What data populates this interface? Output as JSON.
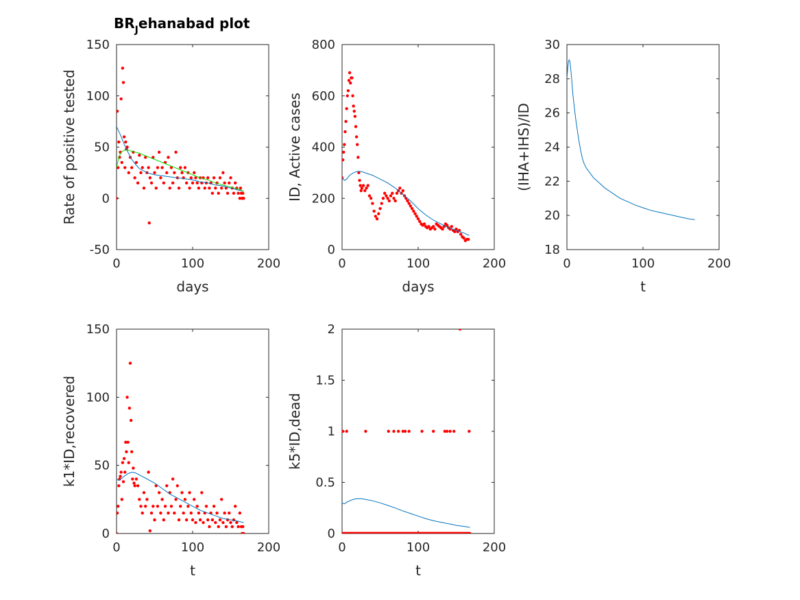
{
  "figure": {
    "title_main": "BR",
    "title_sub": "J",
    "title_rest": "ehanabad plot"
  },
  "colors": {
    "points": "#ff0000",
    "fit": "#0072bd",
    "fit2": "#00e000",
    "axes": "#262626"
  },
  "chart_data": [
    {
      "id": "p1",
      "type": "scatter",
      "xlabel": "days",
      "ylabel": "Rate of positive tested",
      "xlim": [
        0,
        200
      ],
      "ylim": [
        -50,
        150
      ],
      "xticks": [
        0,
        100,
        200
      ],
      "yticks": [
        -50,
        0,
        50,
        100,
        150
      ],
      "xtick_labels": [
        "0",
        "100",
        "200"
      ],
      "ytick_labels": [
        "-50",
        "0",
        "50",
        "100",
        "150"
      ],
      "points": {
        "x": [
          0,
          1,
          2,
          3,
          4,
          5,
          6,
          7,
          8,
          9,
          10,
          11,
          12,
          13,
          14,
          16,
          18,
          20,
          22,
          24,
          26,
          28,
          30,
          32,
          34,
          36,
          38,
          40,
          42,
          43,
          44,
          46,
          48,
          50,
          52,
          54,
          56,
          58,
          60,
          62,
          64,
          66,
          68,
          70,
          72,
          74,
          76,
          78,
          80,
          82,
          84,
          86,
          88,
          90,
          92,
          94,
          96,
          98,
          100,
          102,
          104,
          106,
          108,
          110,
          112,
          114,
          116,
          118,
          120,
          122,
          124,
          126,
          128,
          130,
          132,
          134,
          136,
          138,
          140,
          142,
          144,
          146,
          148,
          150,
          152,
          154,
          156,
          158,
          160,
          162,
          163,
          164,
          165,
          166,
          167
        ],
        "y": [
          0,
          85,
          30,
          55,
          40,
          45,
          97,
          35,
          127,
          113,
          60,
          30,
          55,
          48,
          50,
          25,
          40,
          30,
          45,
          20,
          35,
          15,
          42,
          25,
          30,
          10,
          40,
          25,
          30,
          -24,
          20,
          15,
          40,
          25,
          10,
          30,
          45,
          20,
          30,
          15,
          35,
          25,
          40,
          10,
          30,
          15,
          25,
          45,
          20,
          10,
          30,
          25,
          20,
          30,
          15,
          25,
          10,
          20,
          15,
          25,
          20,
          15,
          10,
          20,
          15,
          20,
          10,
          15,
          20,
          10,
          15,
          5,
          20,
          10,
          15,
          5,
          20,
          10,
          25,
          15,
          10,
          5,
          15,
          20,
          10,
          5,
          15,
          10,
          5,
          0,
          10,
          5,
          0,
          5,
          0
        ]
      },
      "lines": [
        {
          "name": "fit",
          "x": [
            0,
            5,
            10,
            15,
            20,
            25,
            30,
            40,
            50,
            60,
            70,
            80,
            90,
            100,
            110,
            120,
            130,
            140,
            150,
            160,
            167
          ],
          "y": [
            70,
            62,
            53,
            45,
            38,
            33,
            29,
            25,
            23,
            22,
            21,
            20,
            19,
            18,
            16,
            15,
            13,
            12,
            10,
            8,
            7
          ]
        },
        {
          "name": "fit2",
          "x": [
            0,
            3,
            6,
            10,
            15,
            20,
            30,
            40,
            50,
            60,
            70,
            80,
            90,
            100,
            110,
            120,
            130,
            140,
            150,
            160,
            167
          ],
          "y": [
            30,
            40,
            45,
            47,
            47,
            46,
            44,
            41,
            38,
            35,
            32,
            29,
            26,
            23,
            20,
            18,
            15,
            13,
            11,
            9,
            7
          ]
        }
      ]
    },
    {
      "id": "p2",
      "type": "scatter",
      "xlabel": "days",
      "ylabel": "ID, Active cases",
      "xlim": [
        0,
        200
      ],
      "ylim": [
        0,
        800
      ],
      "xticks": [
        0,
        100,
        200
      ],
      "yticks": [
        0,
        200,
        400,
        600,
        800
      ],
      "xtick_labels": [
        "0",
        "100",
        "200"
      ],
      "ytick_labels": [
        "0",
        "200",
        "400",
        "600",
        "800"
      ],
      "points": {
        "x": [
          0,
          1,
          2,
          3,
          4,
          5,
          6,
          7,
          8,
          9,
          10,
          11,
          12,
          13,
          14,
          15,
          16,
          17,
          18,
          19,
          20,
          21,
          22,
          23,
          24,
          25,
          26,
          28,
          30,
          32,
          34,
          36,
          38,
          40,
          42,
          44,
          46,
          48,
          50,
          52,
          54,
          56,
          58,
          60,
          62,
          64,
          66,
          68,
          70,
          72,
          74,
          76,
          78,
          80,
          82,
          84,
          86,
          88,
          90,
          92,
          94,
          96,
          98,
          100,
          102,
          104,
          106,
          108,
          110,
          112,
          114,
          116,
          118,
          120,
          122,
          124,
          126,
          128,
          130,
          132,
          134,
          136,
          138,
          140,
          142,
          144,
          146,
          148,
          150,
          152,
          154,
          156,
          158,
          160,
          162,
          164,
          166
        ],
        "y": [
          280,
          350,
          380,
          410,
          460,
          500,
          550,
          600,
          620,
          660,
          690,
          650,
          670,
          670,
          600,
          560,
          540,
          520,
          480,
          440,
          410,
          360,
          300,
          270,
          250,
          230,
          240,
          250,
          230,
          240,
          250,
          210,
          200,
          180,
          150,
          130,
          120,
          140,
          160,
          180,
          200,
          220,
          210,
          200,
          190,
          210,
          220,
          200,
          190,
          220,
          230,
          240,
          220,
          230,
          210,
          200,
          190,
          180,
          170,
          160,
          150,
          140,
          130,
          120,
          110,
          100,
          95,
          100,
          90,
          85,
          90,
          80,
          85,
          90,
          80,
          100,
          95,
          90,
          85,
          80,
          90,
          100,
          95,
          85,
          80,
          90,
          75,
          70,
          80,
          70,
          75,
          60,
          50,
          45,
          35,
          40,
          40
        ]
      },
      "lines": [
        {
          "name": "fit",
          "x": [
            0,
            3,
            6,
            10,
            15,
            20,
            25,
            30,
            40,
            50,
            60,
            70,
            80,
            90,
            100,
            110,
            120,
            130,
            140,
            150,
            160,
            167
          ],
          "y": [
            280,
            270,
            275,
            290,
            300,
            305,
            305,
            300,
            290,
            275,
            260,
            240,
            215,
            190,
            160,
            135,
            115,
            100,
            85,
            75,
            65,
            55
          ]
        }
      ]
    },
    {
      "id": "p3",
      "type": "line",
      "xlabel": "t",
      "ylabel": "(IHA+IHS)/ID",
      "xlim": [
        0,
        200
      ],
      "ylim": [
        18,
        30
      ],
      "xticks": [
        0,
        100,
        200
      ],
      "yticks": [
        18,
        20,
        22,
        24,
        26,
        28,
        30
      ],
      "xtick_labels": [
        "0",
        "100",
        "200"
      ],
      "ytick_labels": [
        "18",
        "20",
        "22",
        "24",
        "26",
        "28",
        "30"
      ],
      "lines": [
        {
          "name": "fit",
          "x": [
            0,
            1,
            2,
            3,
            4,
            5,
            6,
            7,
            8,
            10,
            12,
            14,
            16,
            18,
            20,
            22,
            25,
            30,
            35,
            40,
            50,
            60,
            70,
            80,
            90,
            100,
            110,
            120,
            130,
            140,
            150,
            160,
            168
          ],
          "y": [
            28.0,
            28.6,
            29.0,
            29.1,
            29.0,
            28.6,
            28.1,
            27.5,
            27.0,
            26.2,
            25.5,
            24.9,
            24.3,
            23.8,
            23.4,
            23.1,
            22.8,
            22.5,
            22.2,
            22.0,
            21.6,
            21.3,
            21.0,
            20.8,
            20.6,
            20.45,
            20.3,
            20.2,
            20.1,
            20.0,
            19.9,
            19.8,
            19.75
          ]
        }
      ]
    },
    {
      "id": "p4",
      "type": "scatter",
      "xlabel": "t",
      "ylabel": "k1*ID,recovered",
      "xlim": [
        0,
        200
      ],
      "ylim": [
        0,
        150
      ],
      "xticks": [
        0,
        100,
        200
      ],
      "yticks": [
        0,
        50,
        100,
        150
      ],
      "xtick_labels": [
        "0",
        "100",
        "200"
      ],
      "ytick_labels": [
        "0",
        "50",
        "100",
        "150"
      ],
      "points": {
        "x": [
          0,
          1,
          2,
          3,
          4,
          5,
          6,
          7,
          8,
          9,
          10,
          11,
          12,
          13,
          14,
          15,
          16,
          17,
          18,
          19,
          20,
          21,
          22,
          23,
          24,
          26,
          28,
          30,
          32,
          34,
          36,
          38,
          40,
          42,
          44,
          46,
          48,
          50,
          52,
          54,
          56,
          58,
          60,
          62,
          64,
          66,
          68,
          70,
          72,
          74,
          76,
          78,
          80,
          82,
          84,
          86,
          88,
          90,
          92,
          94,
          96,
          98,
          100,
          102,
          104,
          106,
          108,
          110,
          112,
          114,
          116,
          118,
          120,
          122,
          124,
          126,
          128,
          130,
          132,
          134,
          136,
          138,
          140,
          142,
          144,
          146,
          148,
          150,
          152,
          154,
          156,
          158,
          160,
          162,
          164,
          165,
          166,
          167
        ],
        "y": [
          0,
          15,
          20,
          35,
          40,
          42,
          45,
          25,
          52,
          38,
          55,
          45,
          67,
          60,
          100,
          67,
          52,
          92,
          125,
          83,
          60,
          40,
          48,
          37,
          35,
          40,
          35,
          25,
          20,
          15,
          30,
          20,
          25,
          45,
          2,
          15,
          20,
          10,
          35,
          20,
          30,
          15,
          25,
          10,
          20,
          35,
          15,
          30,
          20,
          40,
          15,
          25,
          35,
          10,
          20,
          30,
          15,
          25,
          10,
          20,
          30,
          15,
          10,
          25,
          8,
          20,
          15,
          10,
          30,
          8,
          15,
          20,
          10,
          5,
          15,
          10,
          20,
          8,
          15,
          5,
          10,
          25,
          8,
          15,
          5,
          10,
          15,
          8,
          5,
          10,
          20,
          8,
          5,
          15,
          5,
          0,
          5,
          0
        ]
      },
      "lines": [
        {
          "name": "fit",
          "x": [
            0,
            3,
            6,
            10,
            15,
            20,
            25,
            30,
            40,
            50,
            60,
            70,
            80,
            90,
            100,
            110,
            120,
            130,
            140,
            150,
            160,
            167
          ],
          "y": [
            40,
            39,
            40,
            42,
            44,
            45,
            44.5,
            43,
            40,
            37,
            33,
            29,
            26,
            23,
            20,
            17,
            15,
            13,
            11,
            10,
            9,
            8
          ]
        }
      ]
    },
    {
      "id": "p5",
      "type": "scatter",
      "xlabel": "t",
      "ylabel": "k5*ID,dead",
      "xlim": [
        0,
        200
      ],
      "ylim": [
        0,
        2
      ],
      "xticks": [
        0,
        100,
        200
      ],
      "yticks": [
        0,
        0.5,
        1,
        1.5,
        2
      ],
      "xtick_labels": [
        "0",
        "100",
        "200"
      ],
      "ytick_labels": [
        "0",
        "0.5",
        "1",
        "1.5",
        "2"
      ],
      "points": {
        "x": [
          1,
          6,
          31,
          61,
          68,
          74,
          80,
          83,
          88,
          105,
          120,
          135,
          138,
          142,
          147,
          155,
          167
        ],
        "y": [
          1,
          1,
          1,
          1,
          1,
          1,
          1,
          1,
          1,
          1,
          1,
          1,
          1,
          1,
          1,
          2,
          1
        ]
      },
      "baseline": {
        "x_start": 0,
        "x_end": 168,
        "step": 1,
        "y": 0
      },
      "lines": [
        {
          "name": "fit",
          "x": [
            0,
            3,
            6,
            10,
            15,
            20,
            25,
            30,
            40,
            50,
            60,
            70,
            80,
            90,
            100,
            110,
            120,
            130,
            140,
            150,
            160,
            168
          ],
          "y": [
            0.3,
            0.29,
            0.305,
            0.32,
            0.335,
            0.34,
            0.34,
            0.335,
            0.32,
            0.3,
            0.275,
            0.25,
            0.22,
            0.195,
            0.17,
            0.145,
            0.125,
            0.11,
            0.095,
            0.08,
            0.07,
            0.06
          ]
        }
      ]
    }
  ]
}
